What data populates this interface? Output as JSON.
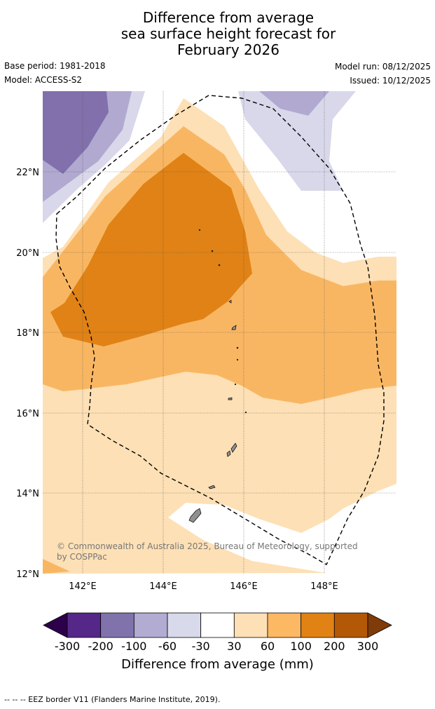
{
  "title": {
    "line1": "Difference from average",
    "line2": "sea surface height forecast for",
    "line3": "February 2026"
  },
  "meta": {
    "base_period": "Base period: 1981-2018",
    "model": "Model: ACCESS-S2",
    "model_run": "Model run: 08/12/2025",
    "issued": "Issued: 10/12/2025"
  },
  "map": {
    "lat_labels": [
      "22°N",
      "20°N",
      "18°N",
      "16°N",
      "14°N",
      "12°N"
    ],
    "lon_labels": [
      "142°E",
      "144°E",
      "146°E",
      "148°E"
    ],
    "credit": "© Commonwealth of Australia 2025, Bureau of Meteorology, supported by COSPPac",
    "colors": {
      "land": "#909090",
      "purple_dark": "#8170ab",
      "purple_mid": "#b1a9d0",
      "purple_light": "#d8d8ea",
      "orange_light": "#fde0b5",
      "orange_mid": "#f9b662",
      "orange_dark": "#e08215"
    }
  },
  "colorbar": {
    "tick_labels": [
      "-300",
      "-200",
      "-100",
      "-60",
      "-30",
      "30",
      "60",
      "100",
      "200",
      "300"
    ],
    "colors": [
      "#2d004b",
      "#542788",
      "#8073ac",
      "#b2abd2",
      "#d8daeb",
      "#ffffff",
      "#fee0b6",
      "#fdb863",
      "#e08214",
      "#b35806",
      "#7f3b08"
    ],
    "label": "Difference from average (mm)"
  },
  "footer": {
    "eez_note": "--  --  -- EEZ border V11 (Flanders Marine Institute, 2019)."
  }
}
